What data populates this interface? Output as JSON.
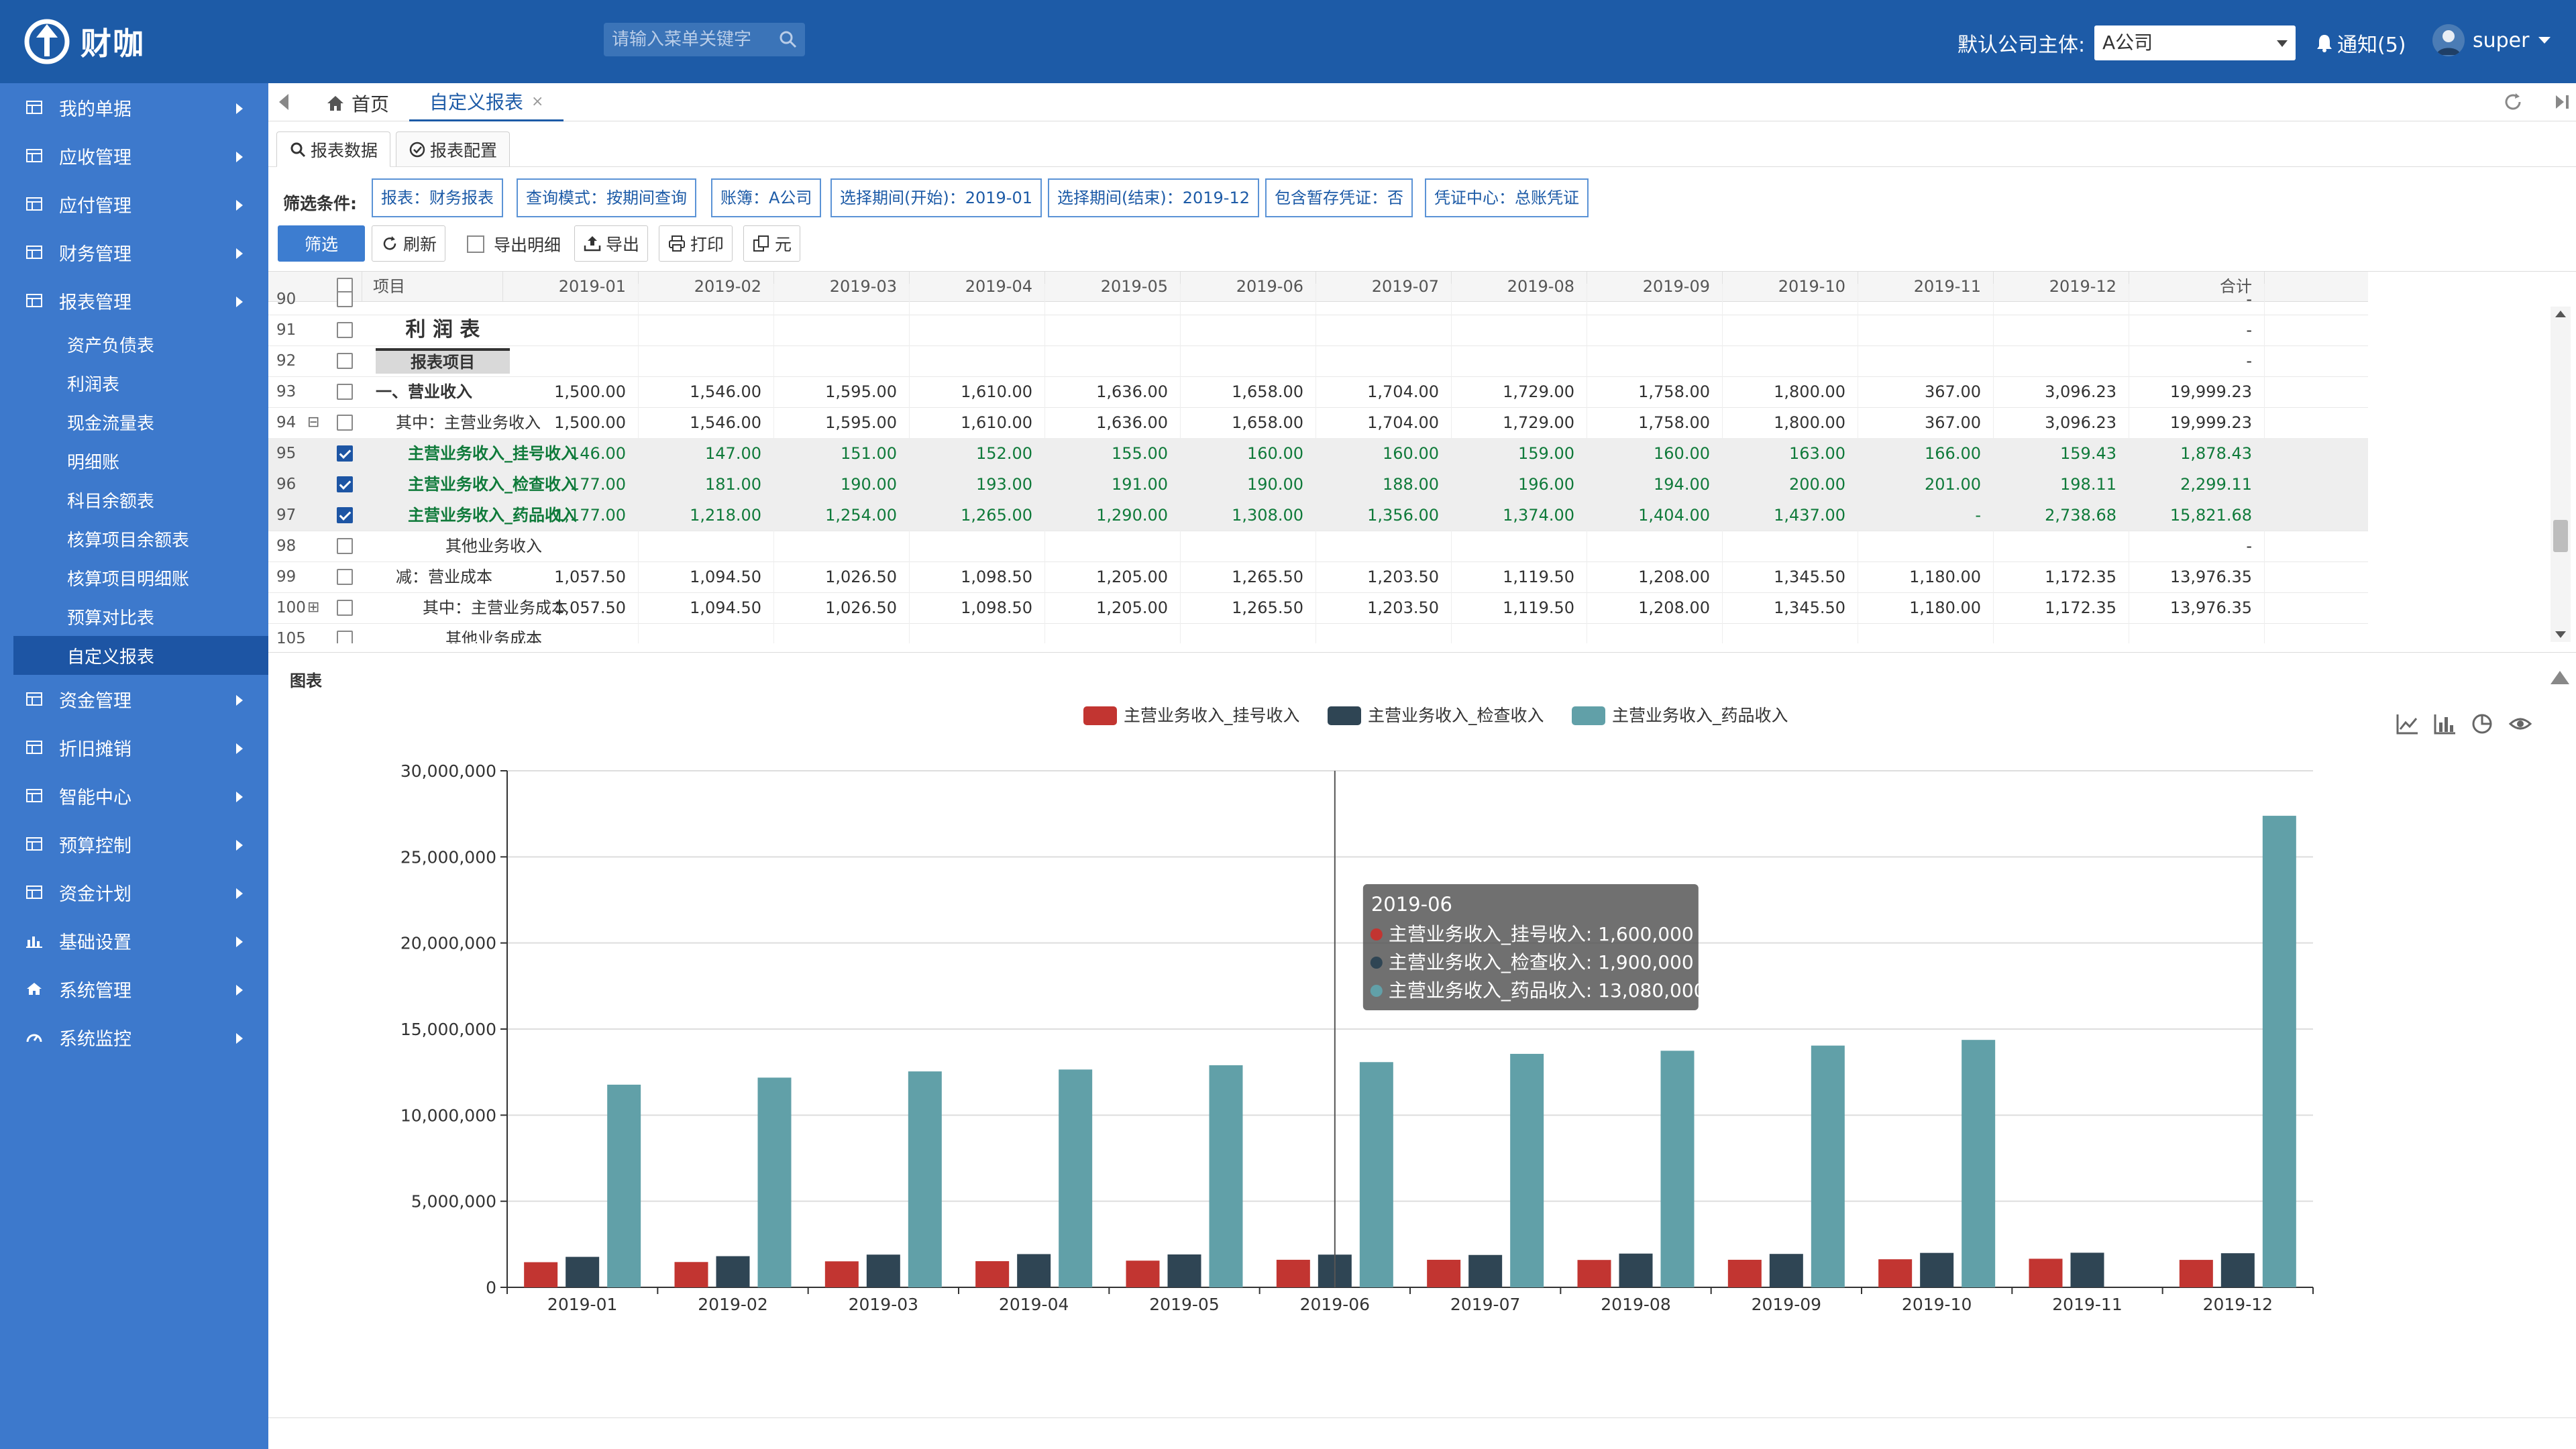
{
  "header": {
    "logo_text": "财咖",
    "search_placeholder": "请输入菜单关键字",
    "company_label": "默认公司主体:",
    "company_value": "A公司",
    "notify_label": "通知(5)",
    "user_name": "super"
  },
  "sidebar": {
    "items": [
      {
        "label": "我的单据"
      },
      {
        "label": "应收管理"
      },
      {
        "label": "应付管理"
      },
      {
        "label": "财务管理"
      },
      {
        "label": "报表管理"
      },
      {
        "label": "资金管理"
      },
      {
        "label": "折旧摊销"
      },
      {
        "label": "智能中心"
      },
      {
        "label": "预算控制"
      },
      {
        "label": "资金计划"
      },
      {
        "label": "基础设置"
      },
      {
        "label": "系统管理"
      },
      {
        "label": "系统监控"
      }
    ],
    "sub_items": [
      "资产负债表",
      "利润表",
      "现金流量表",
      "明细账",
      "科目余额表",
      "核算项目余额表",
      "核算项目明细账",
      "预算对比表",
      "自定义报表"
    ]
  },
  "tabs": {
    "home": "首页",
    "report": "自定义报表",
    "close": "×"
  },
  "inner_tabs": {
    "data": "报表数据",
    "config": "报表配置"
  },
  "filters": {
    "label": "筛选条件:",
    "chips": [
      "报表：财务报表",
      "查询模式：按期间查询",
      "账簿：A公司",
      "选择期间(开始)：2019-01",
      "选择期间(结束)：2019-12",
      "包含暂存凭证：否",
      "凭证中心：总账凭证"
    ]
  },
  "toolbar": {
    "filter": "筛选",
    "refresh": "刷新",
    "export_detail": "导出明细",
    "export": "导出",
    "print": "打印",
    "unit": "元"
  },
  "grid": {
    "columns": [
      "项目",
      "2019-01",
      "2019-02",
      "2019-03",
      "2019-04",
      "2019-05",
      "2019-06",
      "2019-07",
      "2019-08",
      "2019-09",
      "2019-10",
      "2019-11",
      "2019-12",
      "合计"
    ],
    "rows": [
      {
        "num": "90",
        "name": "",
        "cells": [
          "",
          "",
          "",
          "",
          "",
          "",
          "",
          "",
          "",
          "",
          "",
          "",
          "-"
        ]
      },
      {
        "num": "91",
        "name": "利 润 表",
        "cells": [
          "",
          "",
          "",
          "",
          "",
          "",
          "",
          "",
          "",
          "",
          "",
          "",
          "-"
        ]
      },
      {
        "num": "92",
        "name": "报表项目",
        "cells": [
          "",
          "",
          "",
          "",
          "",
          "",
          "",
          "",
          "",
          "",
          "",
          "",
          "-"
        ]
      },
      {
        "num": "93",
        "name": "一、营业收入",
        "cells": [
          "1,500.00",
          "1,546.00",
          "1,595.00",
          "1,610.00",
          "1,636.00",
          "1,658.00",
          "1,704.00",
          "1,729.00",
          "1,758.00",
          "1,800.00",
          "367.00",
          "3,096.23",
          "19,999.23"
        ]
      },
      {
        "num": "94",
        "name": "其中：主营业务收入",
        "cells": [
          "1,500.00",
          "1,546.00",
          "1,595.00",
          "1,610.00",
          "1,636.00",
          "1,658.00",
          "1,704.00",
          "1,729.00",
          "1,758.00",
          "1,800.00",
          "367.00",
          "3,096.23",
          "19,999.23"
        ]
      },
      {
        "num": "95",
        "name": "主营业务收入_挂号收入",
        "cells": [
          "146.00",
          "147.00",
          "151.00",
          "152.00",
          "155.00",
          "160.00",
          "160.00",
          "159.00",
          "160.00",
          "163.00",
          "166.00",
          "159.43",
          "1,878.43"
        ]
      },
      {
        "num": "96",
        "name": "主营业务收入_检查收入",
        "cells": [
          "177.00",
          "181.00",
          "190.00",
          "193.00",
          "191.00",
          "190.00",
          "188.00",
          "196.00",
          "194.00",
          "200.00",
          "201.00",
          "198.11",
          "2,299.11"
        ]
      },
      {
        "num": "97",
        "name": "主营业务收入_药品收入",
        "cells": [
          "1,177.00",
          "1,218.00",
          "1,254.00",
          "1,265.00",
          "1,290.00",
          "1,308.00",
          "1,356.00",
          "1,374.00",
          "1,404.00",
          "1,437.00",
          "-",
          "2,738.68",
          "15,821.68"
        ]
      },
      {
        "num": "98",
        "name": "其他业务收入",
        "cells": [
          "",
          "",
          "",
          "",
          "",
          "",
          "",
          "",
          "",
          "",
          "",
          "",
          "-"
        ]
      },
      {
        "num": "99",
        "name": "减：营业成本",
        "cells": [
          "1,057.50",
          "1,094.50",
          "1,026.50",
          "1,098.50",
          "1,205.00",
          "1,265.50",
          "1,203.50",
          "1,119.50",
          "1,208.00",
          "1,345.50",
          "1,180.00",
          "1,172.35",
          "13,976.35"
        ]
      },
      {
        "num": "100",
        "name": "其中：主营业务成本",
        "cells": [
          "1,057.50",
          "1,094.50",
          "1,026.50",
          "1,098.50",
          "1,205.00",
          "1,265.50",
          "1,203.50",
          "1,119.50",
          "1,208.00",
          "1,345.50",
          "1,180.00",
          "1,172.35",
          "13,976.35"
        ]
      },
      {
        "num": "105",
        "name": "其他业务成本",
        "cells": [
          "",
          "",
          "",
          "",
          "",
          "",
          "",
          "",
          "",
          "",
          "",
          "",
          ""
        ]
      }
    ]
  },
  "chart_panel": {
    "title": "图表"
  },
  "chart_data": {
    "type": "bar",
    "categories": [
      "2019-01",
      "2019-02",
      "2019-03",
      "2019-04",
      "2019-05",
      "2019-06",
      "2019-07",
      "2019-08",
      "2019-09",
      "2019-10",
      "2019-11",
      "2019-12"
    ],
    "series": [
      {
        "name": "主营业务收入_挂号收入",
        "color": "#c23531",
        "values": [
          1460000,
          1470000,
          1510000,
          1520000,
          1550000,
          1600000,
          1600000,
          1590000,
          1600000,
          1630000,
          1660000,
          1594300
        ]
      },
      {
        "name": "主营业务收入_检查收入",
        "color": "#2f4554",
        "values": [
          1770000,
          1810000,
          1900000,
          1930000,
          1910000,
          1900000,
          1880000,
          1960000,
          1940000,
          2000000,
          2010000,
          1981100
        ]
      },
      {
        "name": "主营业务收入_药品收入",
        "color": "#61a0a8",
        "values": [
          11770000,
          12180000,
          12540000,
          12650000,
          12900000,
          13080000,
          13560000,
          13740000,
          14040000,
          14370000,
          0,
          27386800
        ]
      }
    ],
    "ylim": [
      0,
      30000000
    ],
    "yticks": [
      "0",
      "5,000,000",
      "10,000,000",
      "15,000,000",
      "20,000,000",
      "25,000,000",
      "30,000,000"
    ],
    "grid": true,
    "legend": "top-center",
    "tooltip": {
      "title": "2019-06",
      "lines": [
        "主营业务收入_挂号收入: 1,600,000",
        "主营业务收入_检查收入: 1,900,000",
        "主营业务收入_药品收入: 13,080,000"
      ]
    }
  }
}
